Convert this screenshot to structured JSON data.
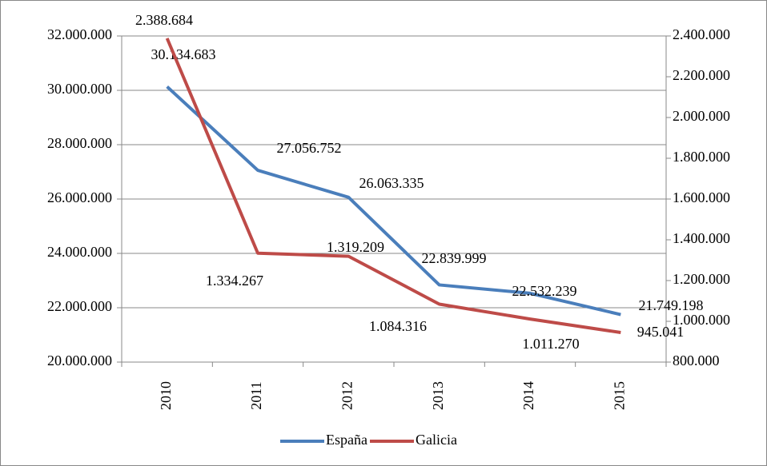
{
  "chart_data": {
    "type": "line",
    "categories": [
      "2010",
      "2011",
      "2012",
      "2013",
      "2014",
      "2015"
    ],
    "series": [
      {
        "name": "España",
        "color": "#4a7ebb",
        "values": [
          30134683,
          27056752,
          26063335,
          22839999,
          22532239,
          21749198
        ],
        "value_labels": [
          "30.134.683",
          "27.056.752",
          "26.063.335",
          "22.839.999",
          "22.532.239",
          "21.749.198"
        ]
      },
      {
        "name": "Galicia",
        "color": "#be4b48",
        "axis": "y2",
        "values": [
          2388684,
          1334267,
          1319209,
          1084316,
          1011270,
          945041
        ],
        "value_labels": [
          "2.388.684",
          "1.334.267",
          "1.319.209",
          "1.084.316",
          "1.011.270",
          "945.041"
        ]
      }
    ],
    "ylim": [
      20000000,
      32000000
    ],
    "yticks": [
      {
        "value": 20000000,
        "label": "20.000.000"
      },
      {
        "value": 22000000,
        "label": "22.000.000"
      },
      {
        "value": 24000000,
        "label": "24.000.000"
      },
      {
        "value": 26000000,
        "label": "26.000.000"
      },
      {
        "value": 28000000,
        "label": "28.000.000"
      },
      {
        "value": 30000000,
        "label": "30.000.000"
      },
      {
        "value": 32000000,
        "label": "32.000.000"
      }
    ],
    "y2lim": [
      800000,
      2400000
    ],
    "y2ticks": [
      {
        "value": 800000,
        "label": "800.000"
      },
      {
        "value": 1000000,
        "label": "1.000.000"
      },
      {
        "value": 1200000,
        "label": "1.200.000"
      },
      {
        "value": 1400000,
        "label": "1.400.000"
      },
      {
        "value": 1600000,
        "label": "1.600.000"
      },
      {
        "value": 1800000,
        "label": "1.800.000"
      },
      {
        "value": 2000000,
        "label": "2.000.000"
      },
      {
        "value": 2200000,
        "label": "2.200.000"
      },
      {
        "value": 2400000,
        "label": "2.400.000"
      }
    ],
    "grid": true,
    "legend": "bottom"
  }
}
